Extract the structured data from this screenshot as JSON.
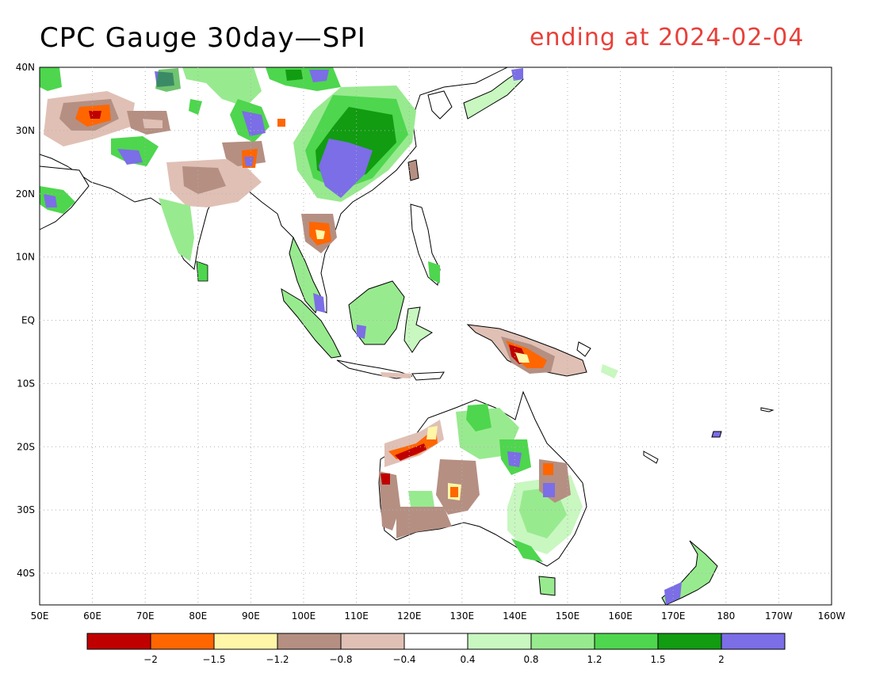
{
  "title": "CPC Gauge 30day—SPI",
  "subtitle": "ending at 2024-02-04",
  "map": {
    "lat_labels": [
      "40N",
      "30N",
      "20N",
      "10N",
      "EQ",
      "10S",
      "20S",
      "30S",
      "40S"
    ],
    "lon_labels": [
      "50E",
      "60E",
      "70E",
      "80E",
      "90E",
      "100E",
      "110E",
      "120E",
      "130E",
      "140E",
      "150E",
      "160E",
      "170E",
      "180",
      "170W",
      "160W"
    ],
    "lat_range": [
      -45,
      40
    ],
    "lon_range": [
      50,
      200
    ],
    "grid": "dotted"
  },
  "legend": {
    "colors": [
      "#c00000",
      "#ff6600",
      "#fff6a8",
      "#b58f82",
      "#e0c0b5",
      "#ffffff",
      "#c8f7c0",
      "#98ea8f",
      "#4ed64e",
      "#119c11",
      "#7b6ee6"
    ],
    "labels": [
      "-2",
      "-1.5",
      "-1.2",
      "-0.8",
      "-0.4",
      "0.4",
      "0.8",
      "1.2",
      "1.5",
      "2"
    ]
  }
}
